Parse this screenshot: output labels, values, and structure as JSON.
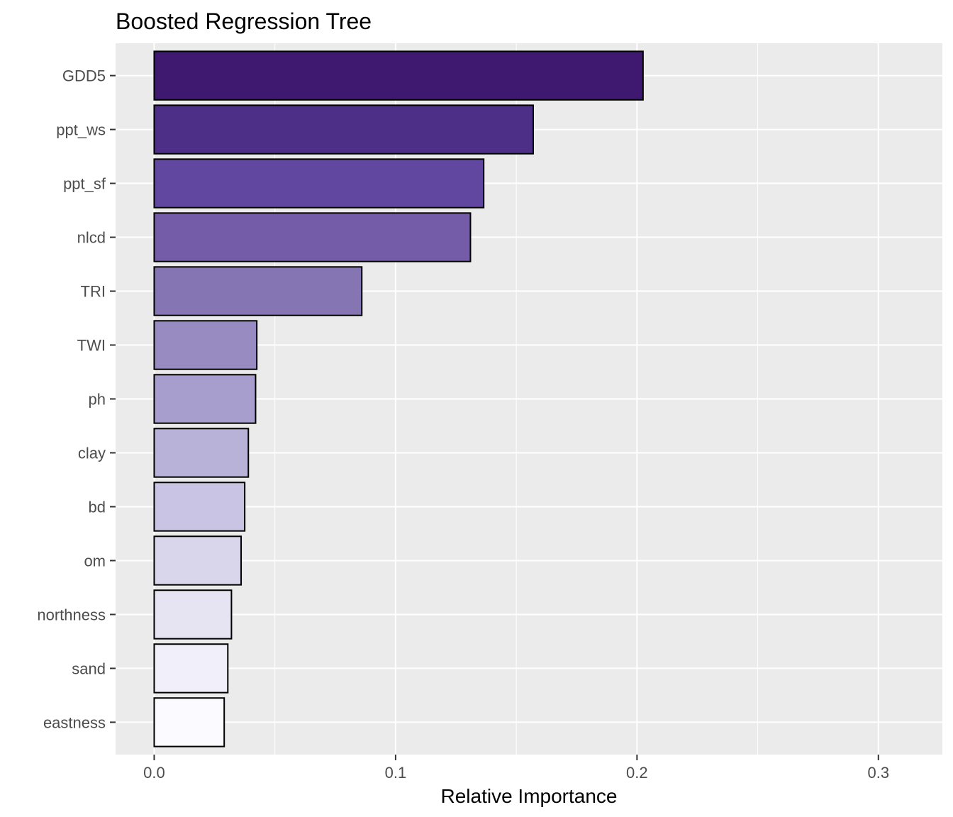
{
  "chart_data": {
    "type": "bar",
    "orientation": "horizontal",
    "title": "Boosted Regression Tree",
    "xlabel": "Relative Importance",
    "ylabel": "",
    "categories": [
      "GDD5",
      "ppt_ws",
      "ppt_sf",
      "nlcd",
      "TRI",
      "TWI",
      "ph",
      "clay",
      "bd",
      "om",
      "northness",
      "sand",
      "eastness"
    ],
    "values": [
      0.2025,
      0.157,
      0.1365,
      0.131,
      0.086,
      0.0425,
      0.042,
      0.039,
      0.0375,
      0.036,
      0.032,
      0.0305,
      0.029
    ],
    "colors": [
      "#3f1970",
      "#4e2f88",
      "#6247a0",
      "#745ca9",
      "#8575b3",
      "#978bc1",
      "#a89ecd",
      "#b8b2d8",
      "#c9c4e3",
      "#d9d6eb",
      "#e6e4f3",
      "#f1f0fa",
      "#fbfbff"
    ],
    "xlim": [
      -0.016,
      0.3265
    ],
    "x_ticks": [
      0.0,
      0.1,
      0.2,
      0.3
    ],
    "x_tick_labels": [
      "0.0",
      "0.1",
      "0.2",
      "0.3"
    ],
    "grid": true,
    "legend": "none",
    "panel_background": "#ebebeb",
    "grid_color": "#ffffff",
    "bar_border_color": "#000000"
  }
}
